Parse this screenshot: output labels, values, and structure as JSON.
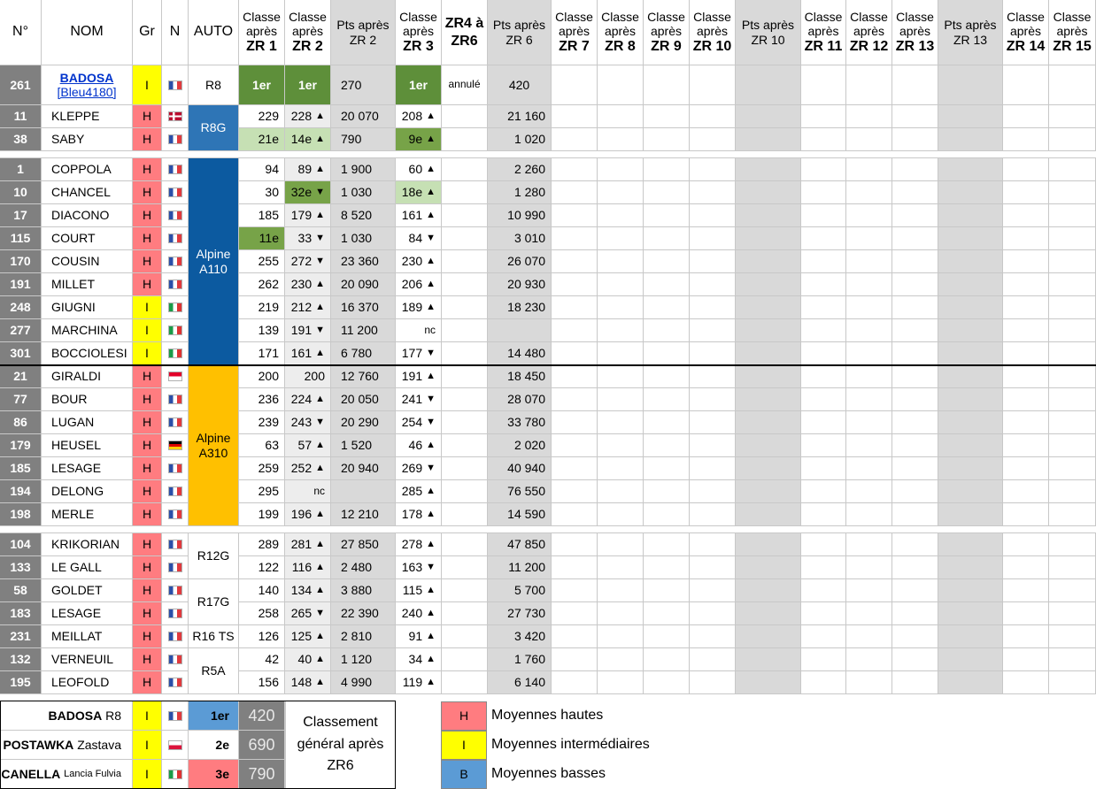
{
  "headers": {
    "num": "N°",
    "name": "NOM",
    "gr": "Gr",
    "n": "N",
    "auto": "AUTO",
    "zr1": [
      "Classe",
      "après",
      "ZR 1"
    ],
    "zr2": [
      "Classe",
      "après",
      "ZR 2"
    ],
    "pts2": [
      "Pts après",
      "ZR 2"
    ],
    "zr3": [
      "Classe",
      "après",
      "ZR 3"
    ],
    "zr46": [
      "ZR4 à",
      "ZR6"
    ],
    "pts6": [
      "Pts après",
      "ZR 6"
    ],
    "zr7": [
      "Classe",
      "après",
      "ZR 7"
    ],
    "zr8": [
      "Classe",
      "après",
      "ZR 8"
    ],
    "zr9": [
      "Classe",
      "après",
      "ZR 9"
    ],
    "zr10": [
      "Classe",
      "après",
      "ZR 10"
    ],
    "pts10": [
      "Pts après",
      "ZR 10"
    ],
    "zr11": [
      "Classe",
      "après",
      "ZR 11"
    ],
    "zr12": [
      "Classe",
      "après",
      "ZR 12"
    ],
    "zr13": [
      "Classe",
      "après",
      "ZR 13"
    ],
    "pts13": [
      "Pts après",
      "ZR 13"
    ],
    "zr14": [
      "Classe",
      "après",
      "ZR 14"
    ],
    "zr15": [
      "Classe",
      "après",
      "ZR 15"
    ]
  },
  "rows": [
    {
      "num": "261",
      "name": "BADOSA",
      "sub": "[Bleu4180]",
      "gr": "I",
      "flag": "fr",
      "zr1": "1er",
      "zr2": "1er",
      "pts2": "270",
      "zr3": "1er",
      "zr46": "annulé",
      "pts6": "420"
    },
    {
      "num": "11",
      "name": "KLEPPE",
      "gr": "H",
      "flag": "no",
      "zr1": "229",
      "zr2": "228",
      "a2": "▲",
      "pts2": "20 070",
      "zr3": "208",
      "a3": "▲",
      "pts6": "21 160"
    },
    {
      "num": "38",
      "name": "SABY",
      "gr": "H",
      "flag": "fr",
      "zr1": "21e",
      "zr2": "14e",
      "a2": "▲",
      "pts2": "790",
      "zr3": "9e",
      "a3": "▲",
      "pts6": "1 020"
    },
    {
      "num": "1",
      "name": "COPPOLA",
      "gr": "H",
      "flag": "fr",
      "zr1": "94",
      "zr2": "89",
      "a2": "▲",
      "pts2": "1 900",
      "zr3": "60",
      "a3": "▲",
      "pts6": "2 260"
    },
    {
      "num": "10",
      "name": "CHANCEL",
      "gr": "H",
      "flag": "fr",
      "zr1": "30",
      "zr2": "32e",
      "a2": "▼",
      "pts2": "1 030",
      "zr3": "18e",
      "a3": "▲",
      "pts6": "1 280"
    },
    {
      "num": "17",
      "name": "DIACONO",
      "gr": "H",
      "flag": "fr",
      "zr1": "185",
      "zr2": "179",
      "a2": "▲",
      "pts2": "8 520",
      "zr3": "161",
      "a3": "▲",
      "pts6": "10 990"
    },
    {
      "num": "115",
      "name": "COURT",
      "gr": "H",
      "flag": "fr",
      "zr1": "11e",
      "zr2": "33",
      "a2": "▼",
      "pts2": "1 030",
      "zr3": "84",
      "a3": "▼",
      "pts6": "3 010"
    },
    {
      "num": "170",
      "name": "COUSIN",
      "gr": "H",
      "flag": "fr",
      "zr1": "255",
      "zr2": "272",
      "a2": "▼",
      "pts2": "23 360",
      "zr3": "230",
      "a3": "▲",
      "pts6": "26 070"
    },
    {
      "num": "191",
      "name": "MILLET",
      "gr": "H",
      "flag": "fr",
      "zr1": "262",
      "zr2": "230",
      "a2": "▲",
      "pts2": "20 090",
      "zr3": "206",
      "a3": "▲",
      "pts6": "20 930"
    },
    {
      "num": "248",
      "name": "GIUGNI",
      "gr": "I",
      "flag": "it",
      "zr1": "219",
      "zr2": "212",
      "a2": "▲",
      "pts2": "16 370",
      "zr3": "189",
      "a3": "▲",
      "pts6": "18 230"
    },
    {
      "num": "277",
      "name": "MARCHINA",
      "gr": "I",
      "flag": "it",
      "zr1": "139",
      "zr2": "191",
      "a2": "▼",
      "pts2": "11 200",
      "zr3": "nc",
      "pts6": ""
    },
    {
      "num": "301",
      "name": "BOCCIOLESI",
      "gr": "I",
      "flag": "it",
      "zr1": "171",
      "zr2": "161",
      "a2": "▲",
      "pts2": "6 780",
      "zr3": "177",
      "a3": "▼",
      "pts6": "14 480"
    },
    {
      "num": "21",
      "name": "GIRALDI",
      "gr": "H",
      "flag": "mc",
      "zr1": "200",
      "zr2": "200",
      "pts2": "12 760",
      "zr3": "191",
      "a3": "▲",
      "pts6": "18 450"
    },
    {
      "num": "77",
      "name": "BOUR",
      "gr": "H",
      "flag": "fr",
      "zr1": "236",
      "zr2": "224",
      "a2": "▲",
      "pts2": "20 050",
      "zr3": "241",
      "a3": "▼",
      "pts6": "28 070"
    },
    {
      "num": "86",
      "name": "LUGAN",
      "gr": "H",
      "flag": "fr",
      "zr1": "239",
      "zr2": "243",
      "a2": "▼",
      "pts2": "20 290",
      "zr3": "254",
      "a3": "▼",
      "pts6": "33 780"
    },
    {
      "num": "179",
      "name": "HEUSEL",
      "gr": "H",
      "flag": "de",
      "zr1": "63",
      "zr2": "57",
      "a2": "▲",
      "pts2": "1 520",
      "zr3": "46",
      "a3": "▲",
      "pts6": "2 020"
    },
    {
      "num": "185",
      "name": "LESAGE",
      "gr": "H",
      "flag": "fr",
      "zr1": "259",
      "zr2": "252",
      "a2": "▲",
      "pts2": "20 940",
      "zr3": "269",
      "a3": "▼",
      "pts6": "40 940"
    },
    {
      "num": "194",
      "name": "DELONG",
      "gr": "H",
      "flag": "fr",
      "zr1": "295",
      "zr2": "nc",
      "pts2": "",
      "zr3": "285",
      "a3": "▲",
      "pts6": "76 550"
    },
    {
      "num": "198",
      "name": "MERLE",
      "gr": "H",
      "flag": "fr",
      "zr1": "199",
      "zr2": "196",
      "a2": "▲",
      "pts2": "12 210",
      "zr3": "178",
      "a3": "▲",
      "pts6": "14 590"
    },
    {
      "num": "104",
      "name": "KRIKORIAN",
      "gr": "H",
      "flag": "fr",
      "zr1": "289",
      "zr2": "281",
      "a2": "▲",
      "pts2": "27 850",
      "zr3": "278",
      "a3": "▲",
      "pts6": "47 850"
    },
    {
      "num": "133",
      "name": "LE GALL",
      "gr": "H",
      "flag": "fr",
      "zr1": "122",
      "zr2": "116",
      "a2": "▲",
      "pts2": "2 480",
      "zr3": "163",
      "a3": "▼",
      "pts6": "11 200"
    },
    {
      "num": "58",
      "name": "GOLDET",
      "gr": "H",
      "flag": "fr",
      "zr1": "140",
      "zr2": "134",
      "a2": "▲",
      "pts2": "3 880",
      "zr3": "115",
      "a3": "▲",
      "pts6": "5 700"
    },
    {
      "num": "183",
      "name": "LESAGE",
      "gr": "H",
      "flag": "fr",
      "zr1": "258",
      "zr2": "265",
      "a2": "▼",
      "pts2": "22 390",
      "zr3": "240",
      "a3": "▲",
      "pts6": "27 730"
    },
    {
      "num": "231",
      "name": "MEILLAT",
      "gr": "H",
      "flag": "fr",
      "zr1": "126",
      "zr2": "125",
      "a2": "▲",
      "pts2": "2 810",
      "zr3": "91",
      "a3": "▲",
      "pts6": "3 420"
    },
    {
      "num": "132",
      "name": "VERNEUIL",
      "gr": "H",
      "flag": "fr",
      "zr1": "42",
      "zr2": "40",
      "a2": "▲",
      "pts2": "1 120",
      "zr3": "34",
      "a3": "▲",
      "pts6": "1 760"
    },
    {
      "num": "195",
      "name": "LEOFOLD",
      "gr": "H",
      "flag": "fr",
      "zr1": "156",
      "zr2": "148",
      "a2": "▲",
      "pts2": "4 990",
      "zr3": "119",
      "a3": "▲",
      "pts6": "6 140"
    }
  ],
  "cars": {
    "r8": "R8",
    "r8g": "R8G",
    "a110": [
      "Alpine",
      "A110"
    ],
    "a310": [
      "Alpine",
      "A310"
    ],
    "r12g": "R12G",
    "r17g": "R17G",
    "r16ts": "R16 TS",
    "r5a": "R5A"
  },
  "podium": [
    {
      "name": "BADOSA",
      "car": "R8",
      "gr": "I",
      "flag": "fr",
      "rank": "1er",
      "pts": "420"
    },
    {
      "name": "POSTAWKA",
      "car": "Zastava",
      "gr": "I",
      "flag": "pl",
      "rank": "2e",
      "pts": "690"
    },
    {
      "name": "CANELLA",
      "car": "Lancia Fulvia",
      "gr": "I",
      "flag": "it",
      "rank": "3e",
      "pts": "790"
    }
  ],
  "podium_caption": [
    "Classement",
    "général après",
    "ZR6"
  ],
  "legend": [
    {
      "code": "H",
      "label": "Moyennes hautes",
      "color": "#ff7c80"
    },
    {
      "code": "I",
      "label": "Moyennes intermédiaires",
      "color": "#ffff00"
    },
    {
      "code": "B",
      "label": "Moyennes basses",
      "color": "#5b9bd5"
    }
  ]
}
